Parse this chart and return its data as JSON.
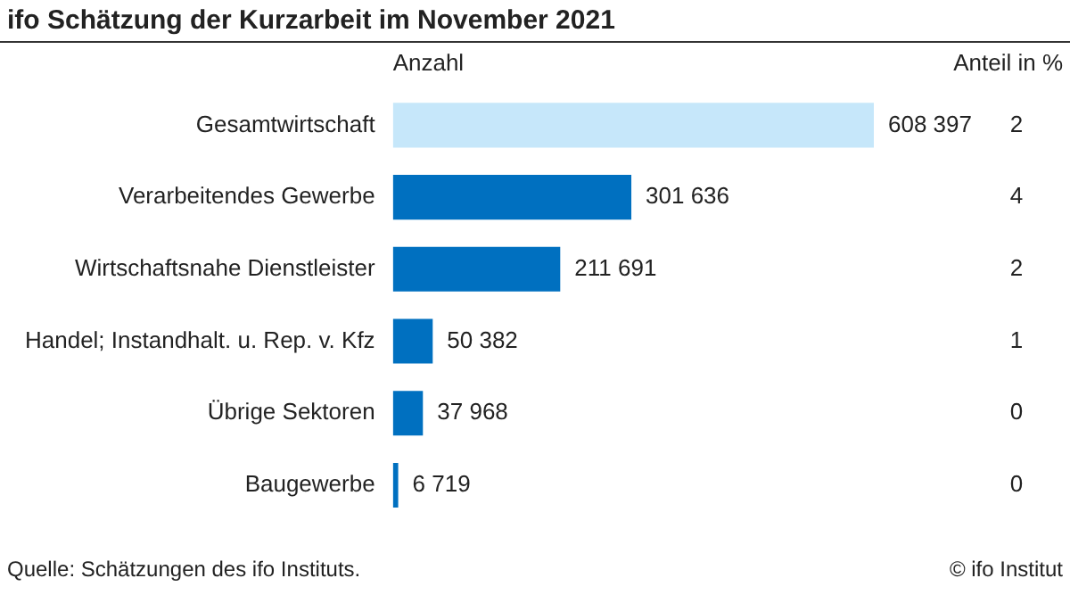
{
  "chart_data": {
    "type": "bar",
    "orientation": "horizontal",
    "title": "ifo Schätzung der Kurzarbeit im November 2021",
    "xlabel": "Anzahl",
    "categories": [
      "Gesamtwirtschaft",
      "Verarbeitendes Gewerbe",
      "Wirtschaftsnahe Dienstleister",
      "Handel; Instandhalt. u. Rep. v. Kfz",
      "Übrige Sektoren",
      "Baugewerbe"
    ],
    "values": [
      608397,
      301636,
      211691,
      50382,
      37968,
      6719
    ],
    "colors": [
      "#c6e7fa",
      "#0070c0",
      "#0070c0",
      "#0070c0",
      "#0070c0",
      "#0070c0"
    ],
    "value_labels": [
      "608 397",
      "301 636",
      "211 691",
      "50 382",
      "37 968",
      "6 719"
    ],
    "grid": false,
    "legend": false,
    "annotations": [
      "Anteil in %",
      "Quelle: Schätzungen des ifo Instituts.",
      "© ifo Institut",
      "2",
      "4",
      "2",
      "1",
      "0",
      "0"
    ]
  }
}
